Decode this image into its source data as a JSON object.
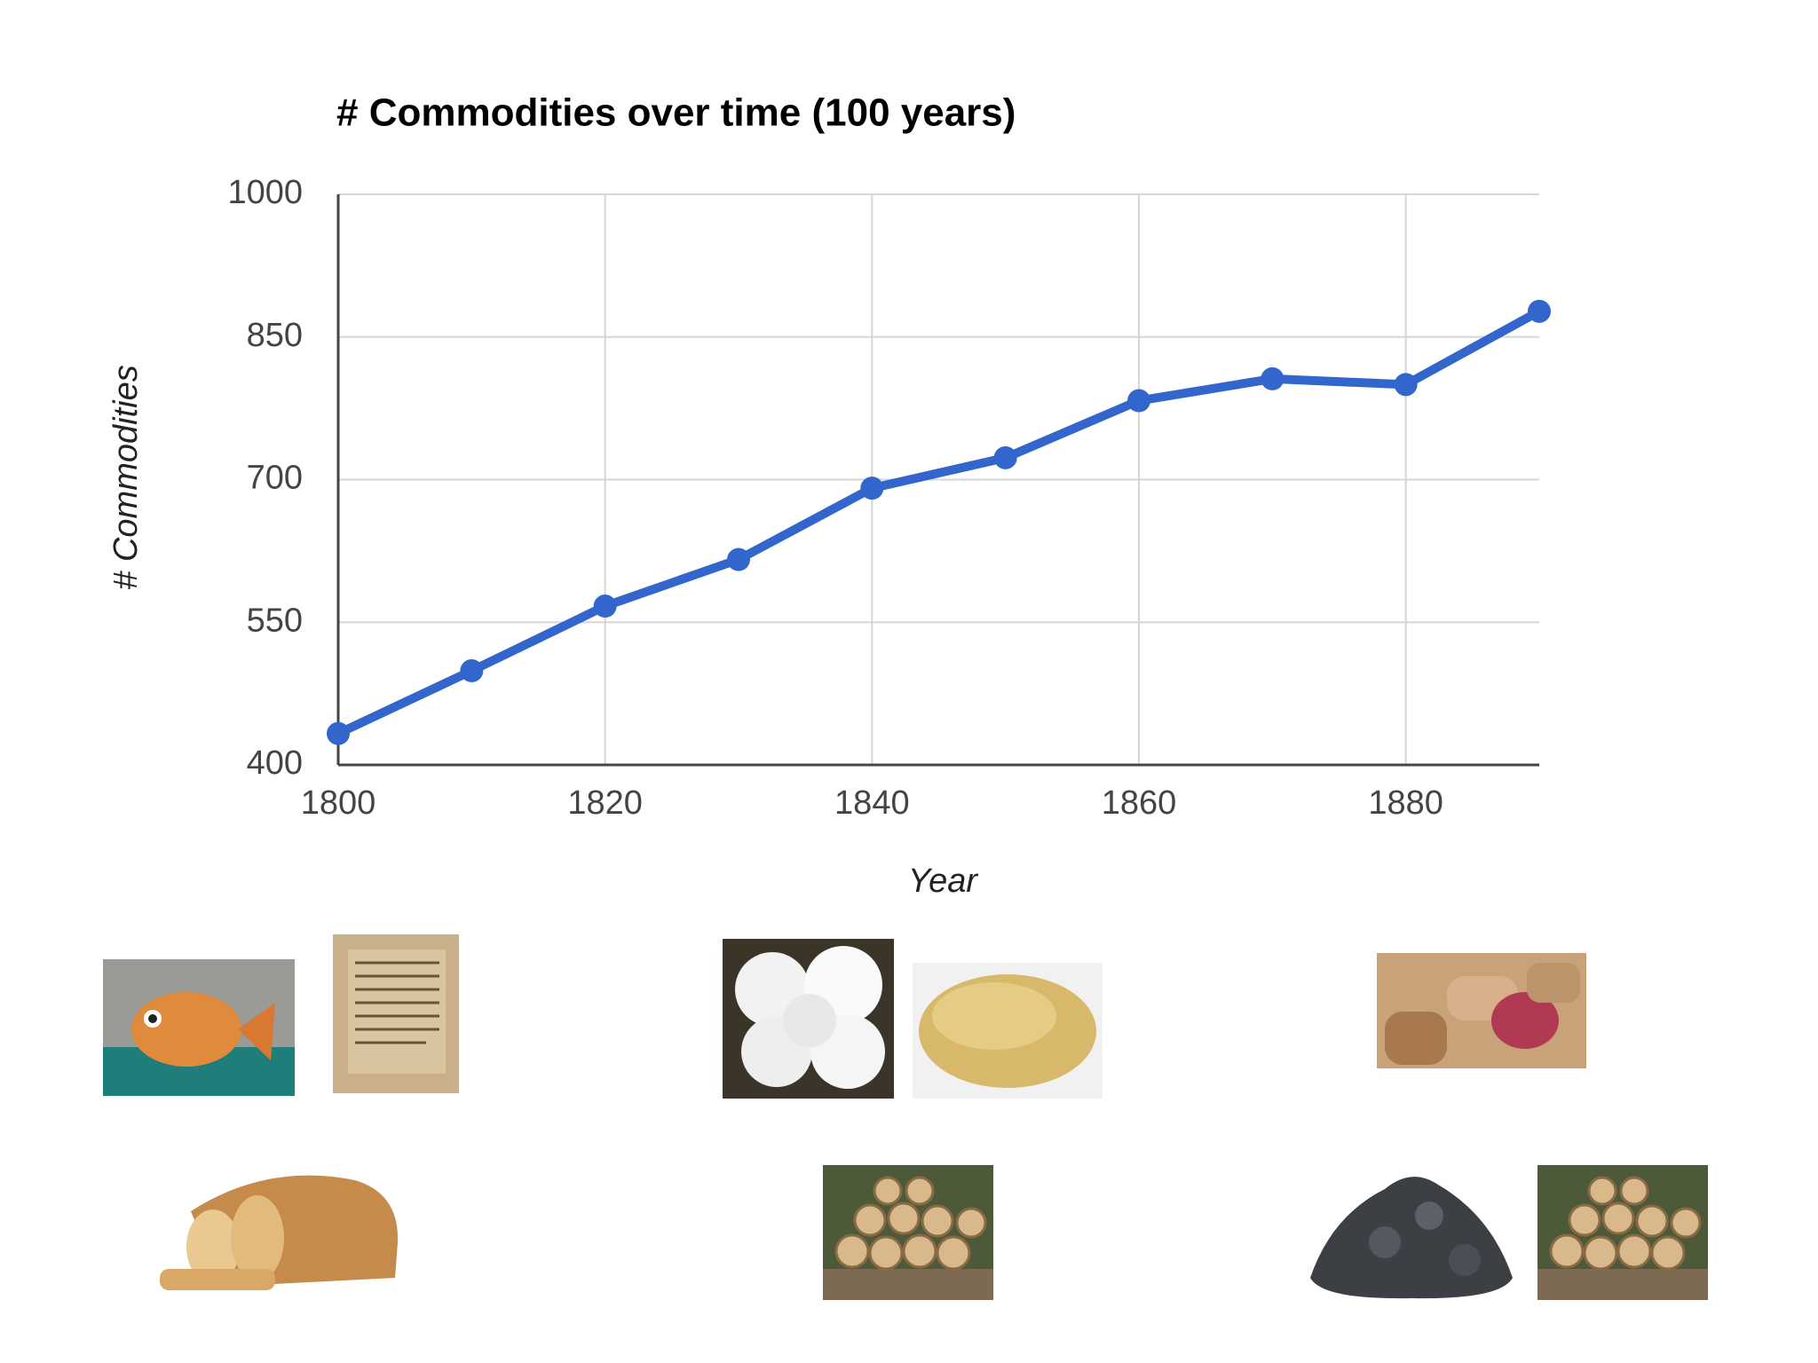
{
  "chart_data": {
    "type": "line",
    "title": "# Commodities over time (100 years)",
    "x_label": "Year",
    "y_label": "# Commodities",
    "x": [
      1800,
      1810,
      1820,
      1830,
      1840,
      1850,
      1860,
      1870,
      1880,
      1890
    ],
    "values": [
      433,
      499,
      567,
      616,
      691,
      723,
      783,
      806,
      800,
      877
    ],
    "color": "#3366cc",
    "xlim": [
      1800,
      1890
    ],
    "xticks": [
      1800,
      1820,
      1840,
      1860,
      1880
    ],
    "ylim": [
      400,
      1000
    ],
    "yticks": [
      400,
      550,
      700,
      850,
      1000
    ],
    "grid": true
  }
}
